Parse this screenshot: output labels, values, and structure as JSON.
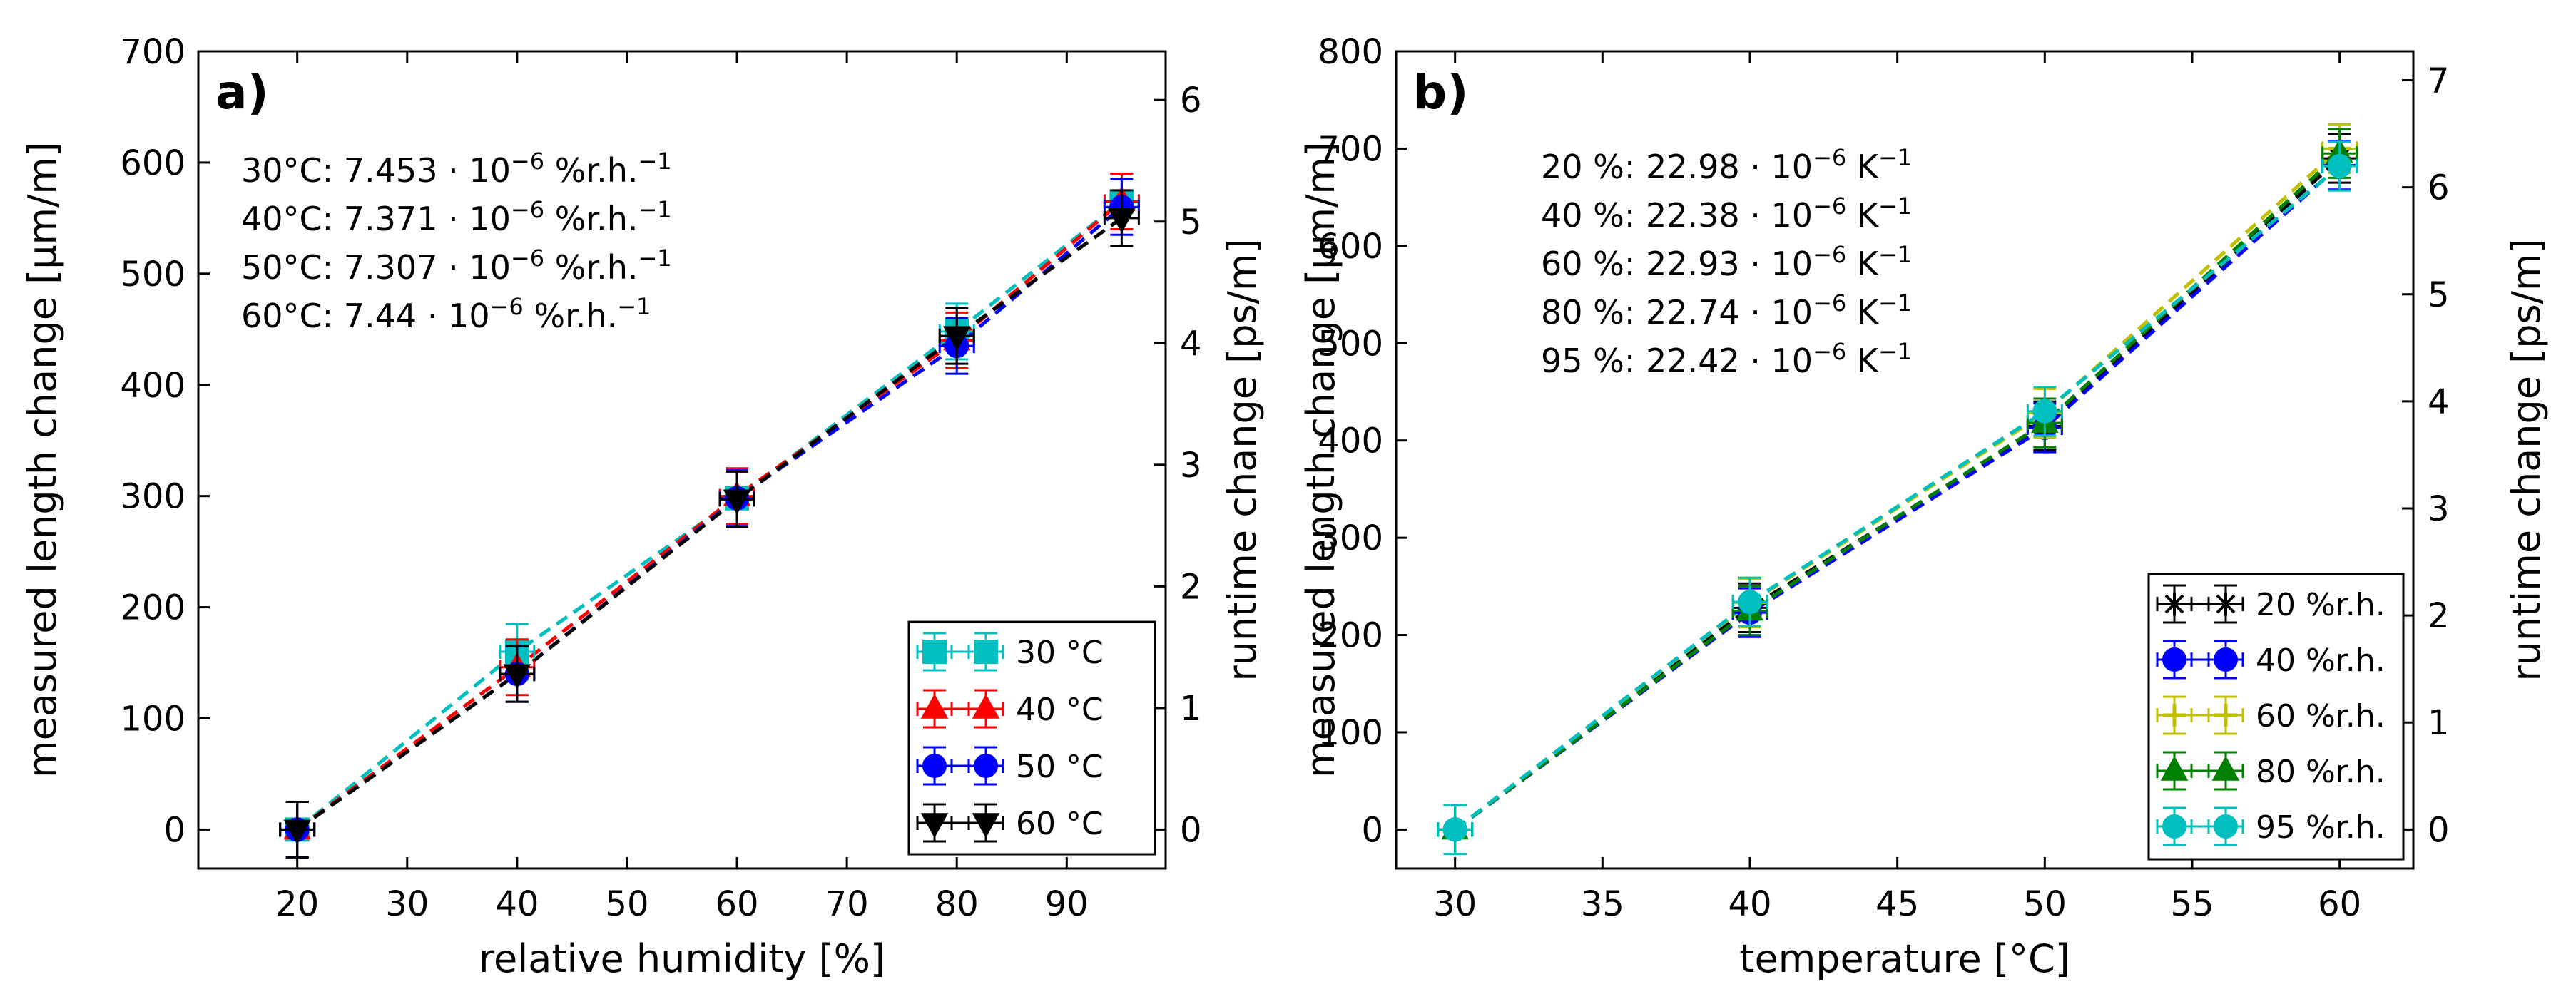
{
  "chart_data": [
    {
      "type": "line",
      "panel_label": "a)",
      "xlabel": "relative humidity [%]",
      "ylabel": "measured length change [μm/m]",
      "y2label": "runtime change [ps/m]",
      "xlim": [
        11,
        99
      ],
      "ylim": [
        -35,
        700
      ],
      "y2lim": [
        -0.32,
        6.4
      ],
      "xticks": [
        "20",
        "30",
        "40",
        "50",
        "60",
        "70",
        "80",
        "90"
      ],
      "yticks": [
        "0",
        "100",
        "200",
        "300",
        "400",
        "500",
        "600",
        "700"
      ],
      "y2ticks": [
        "0",
        "1",
        "2",
        "3",
        "4",
        "5",
        "6"
      ],
      "legend_position": "lower right",
      "series": [
        {
          "name": "30 °C",
          "color": "#00bfbf",
          "marker": "square",
          "x": [
            20,
            40,
            60,
            80,
            95
          ],
          "y": [
            0,
            160,
            298,
            448,
            565
          ],
          "yerr": [
            25,
            25,
            25,
            25,
            25
          ]
        },
        {
          "name": "40 °C",
          "color": "#ff0000",
          "marker": "triangle-up",
          "x": [
            20,
            40,
            60,
            80,
            95
          ],
          "y": [
            0,
            146,
            300,
            440,
            565
          ],
          "yerr": [
            25,
            25,
            25,
            25,
            25
          ]
        },
        {
          "name": "50 °C",
          "color": "#0000ff",
          "marker": "circle",
          "x": [
            20,
            40,
            60,
            80,
            95
          ],
          "y": [
            0,
            140,
            298,
            435,
            560
          ],
          "yerr": [
            25,
            25,
            25,
            25,
            25
          ]
        },
        {
          "name": "60 °C",
          "color": "#000000",
          "marker": "triangle-down",
          "x": [
            20,
            40,
            60,
            80,
            95
          ],
          "y": [
            0,
            140,
            297,
            444,
            550
          ],
          "yerr": [
            25,
            25,
            25,
            25,
            25
          ]
        }
      ],
      "annotations": [
        {
          "prefix": "30°C:  7.453 · 10",
          "exp": "−6",
          "unit": " %r.h.",
          "unit_exp": "−1"
        },
        {
          "prefix": "40°C:  7.371 · 10",
          "exp": "−6",
          "unit": " %r.h.",
          "unit_exp": "−1"
        },
        {
          "prefix": "50°C:  7.307 · 10",
          "exp": "−6",
          "unit": " %r.h.",
          "unit_exp": "−1"
        },
        {
          "prefix": "60°C:   7.44 · 10",
          "exp": "−6",
          "unit": " %r.h.",
          "unit_exp": "−1"
        }
      ]
    },
    {
      "type": "line",
      "panel_label": "b)",
      "xlabel": "temperature [°C]",
      "ylabel": "measured length change [μm/m]",
      "y2label": "runtime change [ps/m]",
      "xlim": [
        28,
        62.5
      ],
      "ylim": [
        -40,
        800
      ],
      "y2lim": [
        -0.364,
        7.27
      ],
      "xticks": [
        "30",
        "35",
        "40",
        "45",
        "50",
        "55",
        "60"
      ],
      "yticks": [
        "0",
        "100",
        "200",
        "300",
        "400",
        "500",
        "600",
        "700",
        "800"
      ],
      "y2ticks": [
        "0",
        "1",
        "2",
        "3",
        "4",
        "5",
        "6",
        "7"
      ],
      "legend_position": "lower right",
      "series": [
        {
          "name": "20 %r.h.",
          "color": "#000000",
          "marker": "star",
          "x": [
            30,
            40,
            50,
            60
          ],
          "y": [
            0,
            228,
            415,
            690
          ],
          "yerr": [
            25,
            25,
            25,
            25
          ]
        },
        {
          "name": "40 %r.h.",
          "color": "#0000ff",
          "marker": "circle",
          "x": [
            30,
            40,
            50,
            60
          ],
          "y": [
            0,
            223,
            413,
            683
          ],
          "yerr": [
            25,
            25,
            25,
            25
          ]
        },
        {
          "name": "60 %r.h.",
          "color": "#bfbf00",
          "marker": "plus",
          "x": [
            30,
            40,
            50,
            60
          ],
          "y": [
            0,
            233,
            428,
            700
          ],
          "yerr": [
            25,
            25,
            25,
            25
          ]
        },
        {
          "name": "80 %r.h.",
          "color": "#008000",
          "marker": "triangle-up",
          "x": [
            30,
            40,
            50,
            60
          ],
          "y": [
            0,
            225,
            418,
            695
          ],
          "yerr": [
            25,
            25,
            25,
            25
          ]
        },
        {
          "name": "95 %r.h.",
          "color": "#00bfbf",
          "marker": "circle",
          "x": [
            30,
            40,
            50,
            60
          ],
          "y": [
            0,
            234,
            430,
            682
          ],
          "yerr": [
            25,
            25,
            25,
            25
          ]
        }
      ],
      "annotations": [
        {
          "prefix": "20 %:  22.98 · 10",
          "exp": "−6",
          "unit": " K",
          "unit_exp": "−1"
        },
        {
          "prefix": "40 %:  22.38 · 10",
          "exp": "−6",
          "unit": " K",
          "unit_exp": "−1"
        },
        {
          "prefix": "60 %:  22.93 · 10",
          "exp": "−6",
          "unit": " K",
          "unit_exp": "−1"
        },
        {
          "prefix": "80 %:  22.74 · 10",
          "exp": "−6",
          "unit": " K",
          "unit_exp": "−1"
        },
        {
          "prefix": "95 %:  22.42 · 10",
          "exp": "−6",
          "unit": " K",
          "unit_exp": "−1"
        }
      ]
    }
  ]
}
